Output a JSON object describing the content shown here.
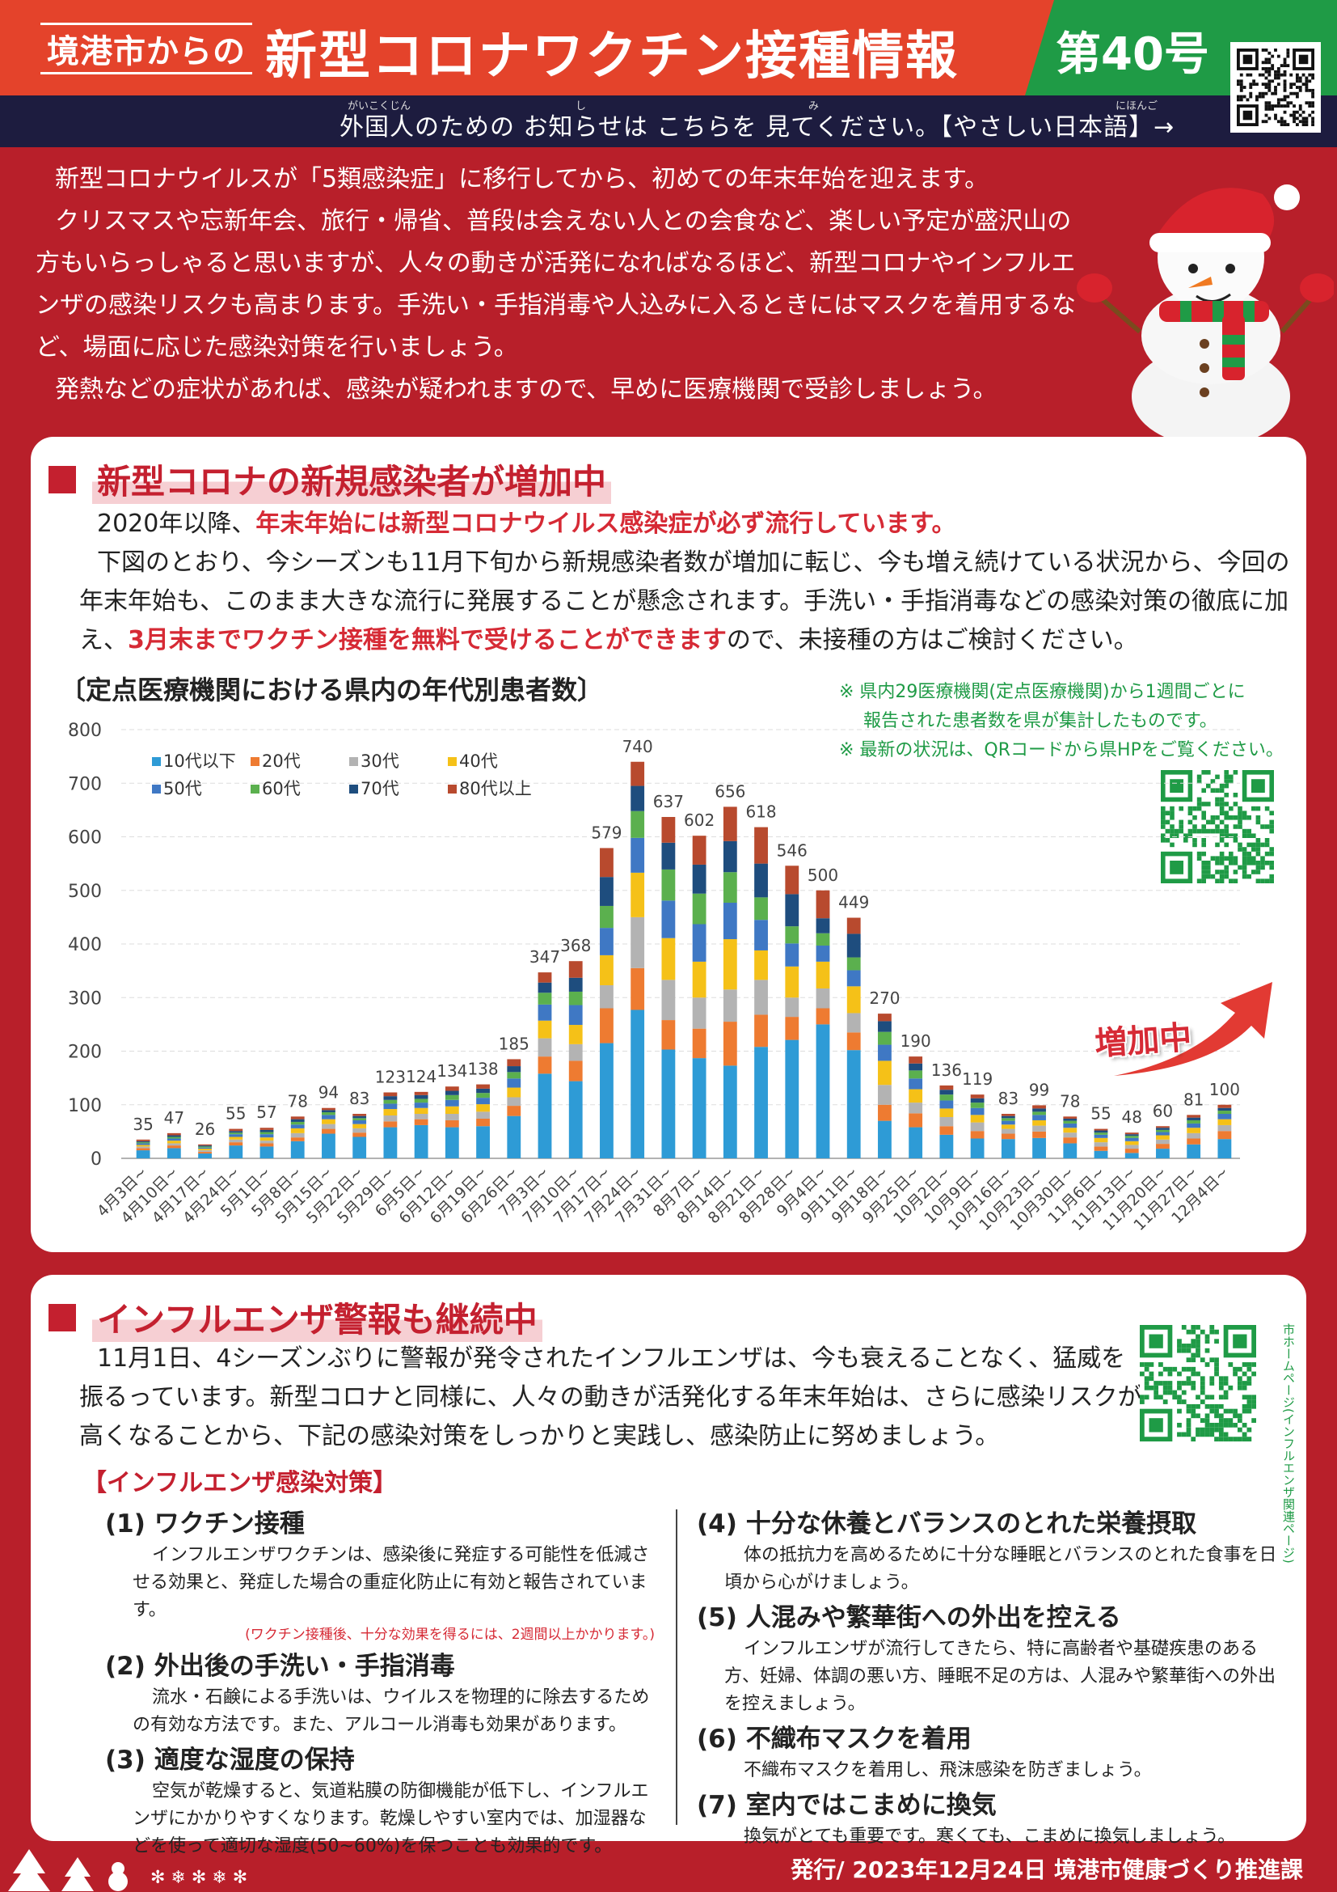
{
  "header": {
    "from": "境港市からの",
    "title": "新型コロナワクチン接種情報",
    "issue": "第40号"
  },
  "notice": {
    "text": "外国人のための お知らせは こちらを 見てください。【やさしい日本語】→",
    "ruby": {
      "gaikokujin": "がいこくじん",
      "shi": "し",
      "mi": "み",
      "nihongo": "にほんご"
    }
  },
  "intro": [
    "新型コロナウイルスが「5類感染症」に移行してから、初めての年末年始を迎えます。",
    "クリスマスや忘新年会、旅行・帰省、普段は会えない人との会食など、楽しい予定が盛沢山の方もいらっしゃると思いますが、人々の動きが活発になればなるほど、新型コロナやインフルエンザの感染リスクも高まります。手洗い・手指消毒や人込みに入るときにはマスクを着用するなど、場面に応じた感染対策を行いましょう。",
    "発熱などの症状があれば、感染が疑われますので、早めに医療機関で受診しましょう。"
  ],
  "covid": {
    "heading": "新型コロナの新規感染者が増加中",
    "p1_plain": "2020年以降、",
    "p1_red": "年末年始には新型コロナウイルス感染症が必ず流行しています。",
    "p2_a": "下図のとおり、今シーズンも11月下旬から新規感染者数が増加に転じ、今も増え続けている状況から、今回の年末年始も、このまま大きな流行に発展することが懸念されます。手洗い・手指消毒などの感染対策の徹底に加え、",
    "p2_red": "3月末までワクチン接種を無料で受けることができます",
    "p2_b": "ので、未接種の方はご検討ください。",
    "chart_title": "〔定点医療機関における県内の年代別患者数〕",
    "note1": "※ 県内29医療機関(定点医療機関)から1週間ごとに",
    "note2": "報告された患者数を県が集計したものです。",
    "note3": "※ 最新の状況は、QRコードから県HPをご覧ください。",
    "increase_label": "増加中"
  },
  "chart_data": {
    "type": "bar",
    "stacked": true,
    "title": "〔定点医療機関における県内の年代別患者数〕",
    "ylim": [
      0,
      800
    ],
    "yticks": [
      0,
      100,
      200,
      300,
      400,
      500,
      600,
      700,
      800
    ],
    "grid": true,
    "legend_position": "top-left",
    "categories": [
      "4月3日~",
      "4月10日~",
      "4月17日~",
      "4月24日~",
      "5月1日~",
      "5月8日~",
      "5月15日~",
      "5月22日~",
      "5月29日~",
      "6月5日~",
      "6月12日~",
      "6月19日~",
      "6月26日~",
      "7月3日~",
      "7月10日~",
      "7月17日~",
      "7月24日~",
      "7月31日~",
      "8月7日~",
      "8月14日~",
      "8月21日~",
      "8月28日~",
      "9月4日~",
      "9月11日~",
      "9月18日~",
      "9月25日~",
      "10月2日~",
      "10月9日~",
      "10月16日~",
      "10月23日~",
      "10月30日~",
      "11月6日~",
      "11月13日~",
      "11月20日~",
      "11月27日~",
      "12月4日~"
    ],
    "totals": [
      35,
      47,
      26,
      55,
      57,
      78,
      94,
      83,
      123,
      124,
      134,
      138,
      185,
      347,
      368,
      579,
      740,
      637,
      602,
      656,
      618,
      546,
      500,
      449,
      270,
      190,
      136,
      119,
      83,
      99,
      78,
      55,
      48,
      60,
      81,
      100
    ],
    "colors": [
      "#2e9bd6",
      "#ee7b31",
      "#b3b3b3",
      "#f5c118",
      "#3f78c4",
      "#5bb04e",
      "#1e4d7e",
      "#b84a2e"
    ],
    "series": [
      {
        "name": "10代以下",
        "values": [
          15,
          19,
          9,
          24,
          22,
          32,
          46,
          40,
          58,
          62,
          58,
          60,
          79,
          158,
          144,
          215,
          277,
          203,
          187,
          173,
          208,
          221,
          250,
          202,
          70,
          58,
          44,
          37,
          36,
          38,
          28,
          14,
          10,
          18,
          26,
          36
        ]
      },
      {
        "name": "20代",
        "values": [
          4,
          5,
          3,
          6,
          6,
          7,
          9,
          8,
          11,
          11,
          13,
          14,
          19,
          32,
          38,
          65,
          78,
          55,
          55,
          82,
          60,
          43,
          30,
          33,
          30,
          26,
          16,
          14,
          10,
          12,
          11,
          8,
          8,
          9,
          11,
          15
        ]
      },
      {
        "name": "30代",
        "values": [
          3,
          4,
          3,
          5,
          5,
          8,
          9,
          8,
          11,
          10,
          12,
          13,
          16,
          34,
          31,
          43,
          95,
          75,
          58,
          60,
          65,
          36,
          37,
          36,
          37,
          20,
          17,
          16,
          9,
          11,
          9,
          8,
          7,
          8,
          10,
          11
        ]
      },
      {
        "name": "40代",
        "values": [
          3,
          5,
          3,
          5,
          6,
          9,
          9,
          8,
          12,
          11,
          14,
          14,
          18,
          33,
          36,
          56,
          83,
          78,
          67,
          94,
          55,
          58,
          50,
          50,
          45,
          25,
          16,
          14,
          8,
          10,
          9,
          8,
          7,
          8,
          10,
          11
        ]
      },
      {
        "name": "50代",
        "values": [
          3,
          4,
          2,
          5,
          6,
          7,
          8,
          7,
          10,
          10,
          12,
          12,
          17,
          30,
          37,
          51,
          65,
          70,
          70,
          68,
          57,
          43,
          30,
          30,
          30,
          20,
          15,
          13,
          7,
          10,
          8,
          6,
          6,
          6,
          8,
          10
        ]
      },
      {
        "name": "60代",
        "values": [
          2,
          3,
          2,
          3,
          4,
          5,
          5,
          4,
          7,
          7,
          9,
          9,
          12,
          22,
          25,
          41,
          50,
          58,
          57,
          57,
          42,
          32,
          23,
          24,
          24,
          15,
          11,
          10,
          5,
          6,
          5,
          4,
          4,
          4,
          6,
          6
        ]
      },
      {
        "name": "70代",
        "values": [
          2,
          3,
          2,
          3,
          4,
          5,
          4,
          4,
          7,
          7,
          8,
          8,
          11,
          19,
          26,
          54,
          47,
          50,
          54,
          58,
          63,
          60,
          28,
          44,
          20,
          13,
          9,
          8,
          4,
          6,
          4,
          4,
          3,
          4,
          5,
          5
        ]
      },
      {
        "name": "80代以上",
        "values": [
          3,
          4,
          2,
          4,
          4,
          5,
          4,
          4,
          7,
          6,
          8,
          8,
          13,
          19,
          31,
          54,
          45,
          48,
          54,
          64,
          68,
          53,
          52,
          30,
          14,
          13,
          8,
          7,
          4,
          6,
          4,
          3,
          3,
          3,
          5,
          6
        ]
      }
    ]
  },
  "flu": {
    "heading": "インフルエンザ警報も継続中",
    "text": "11月1日、4シーズンぶりに警報が発令されたインフルエンザは、今も衰えることなく、猛威を振るっています。新型コロナと同様に、人々の動きが活発化する年末年始は、さらに感染リスクが高くなることから、下記の感染対策をしっかりと実践し、感染防止に努めましょう。",
    "qr_label": "市ホームページ(インフルエンザ関連ページ)",
    "measures_heading": "【インフルエンザ感染対策】",
    "m1_title": "(1) ワクチン接種",
    "m1_text": "インフルエンザワクチンは、感染後に発症する可能性を低減させる効果と、発症した場合の重症化防止に有効と報告されています。",
    "m1_note": "(ワクチン接種後、十分な効果を得るには、2週間以上かかります。)",
    "m2_title": "(2) 外出後の手洗い・手指消毒",
    "m2_text": "流水・石鹸による手洗いは、ウイルスを物理的に除去するための有効な方法です。また、アルコール消毒も効果があります。",
    "m3_title": "(3) 適度な湿度の保持",
    "m3_text": "空気が乾燥すると、気道粘膜の防御機能が低下し、インフルエンザにかかりやすくなります。乾燥しやすい室内では、加湿器などを使って適切な湿度(50~60%)を保つことも効果的です。",
    "m4_title": "(4) 十分な休養とバランスのとれた栄養摂取",
    "m4_text": "体の抵抗力を高めるために十分な睡眠とバランスのとれた食事を日頃から心がけましょう。",
    "m5_title": "(5) 人混みや繁華街への外出を控える",
    "m5_text": "インフルエンザが流行してきたら、特に高齢者や基礎疾患のある方、妊婦、体調の悪い方、睡眠不足の方は、人混みや繁華街への外出を控えましょう。",
    "m6_title": "(6) 不織布マスクを着用",
    "m6_text": "不織布マスクを着用し、飛沫感染を防ぎましょう。",
    "m7_title": "(7) 室内ではこまめに換気",
    "m7_text": "換気がとても重要です。寒くても、こまめに換気しましょう。"
  },
  "footer": {
    "publisher": "発行/ 2023年12月24日 境港市健康づくり推進課"
  }
}
